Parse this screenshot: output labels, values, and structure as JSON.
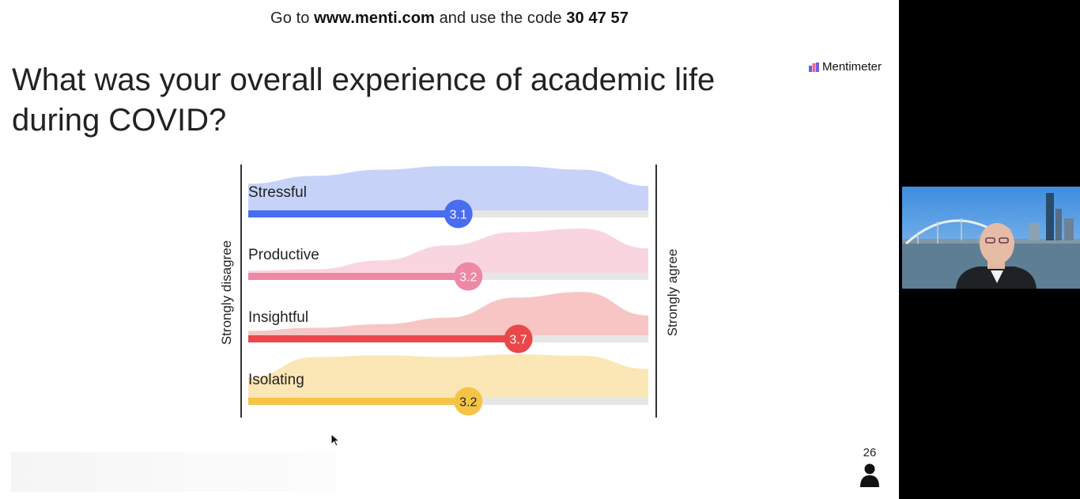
{
  "join": {
    "prefix": "Go to ",
    "url": "www.menti.com",
    "middle": " and use the code ",
    "code": "30 47 57"
  },
  "question": {
    "title": "What was your overall experience of academic life during COVID?"
  },
  "brand": {
    "name": "Mentimeter"
  },
  "participants": {
    "count": "26"
  },
  "chart_data": {
    "type": "scale",
    "scale_min": 1,
    "scale_max": 5,
    "min_label": "Strongly disagree",
    "max_label": "Strongly agree",
    "statements": [
      {
        "label": "Stressful",
        "value": 3.1,
        "display": "3.1",
        "color": "#4a6cf0",
        "fill": "#c7d2f9",
        "distribution": [
          0.6,
          0.78,
          0.92,
          1.0,
          1.0,
          0.92,
          0.55
        ]
      },
      {
        "label": "Productive",
        "value": 3.2,
        "display": "3.2",
        "color": "#ee88a5",
        "fill": "#f9d5df",
        "distribution": [
          0.05,
          0.08,
          0.28,
          0.62,
          0.92,
          1.0,
          0.55
        ]
      },
      {
        "label": "Insightful",
        "value": 3.7,
        "display": "3.7",
        "color": "#e9474a",
        "fill": "#f7c6c4",
        "distribution": [
          0.1,
          0.17,
          0.25,
          0.4,
          0.85,
          0.98,
          0.45
        ]
      },
      {
        "label": "Isolating",
        "value": 3.2,
        "display": "3.2",
        "color": "#f6c445",
        "fill": "#fbe6b6",
        "distribution": [
          0.45,
          0.92,
          0.96,
          0.92,
          0.98,
          0.95,
          0.65
        ]
      }
    ]
  },
  "colors": {
    "text": "#222222",
    "track": "#e6e6e6"
  }
}
